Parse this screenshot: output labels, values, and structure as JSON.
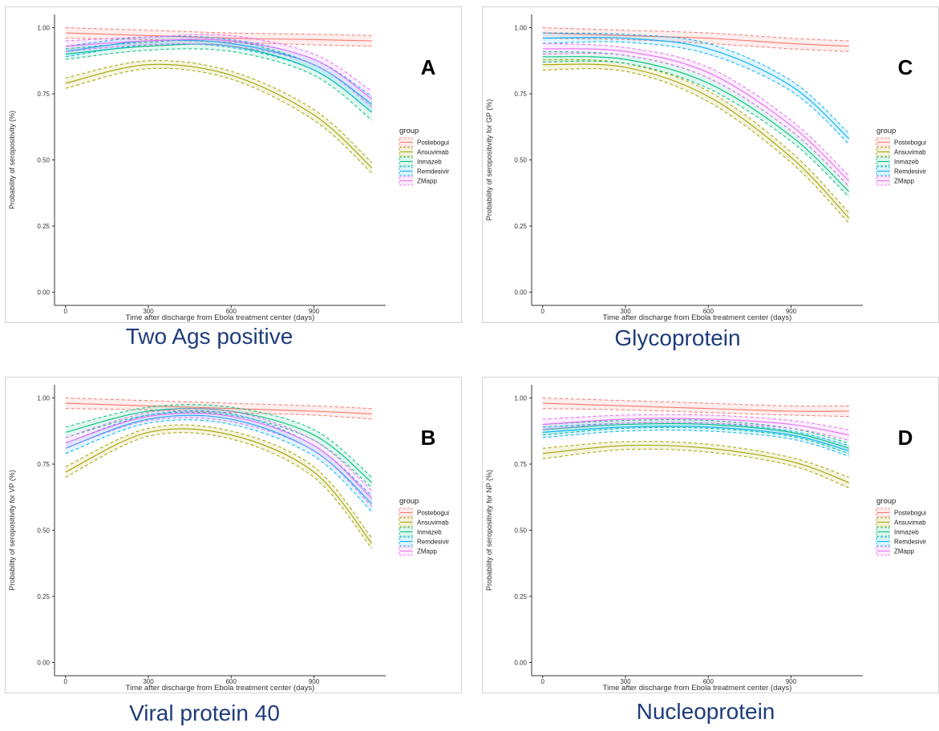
{
  "chart_data": [
    {
      "type": "line",
      "panel_letter": "A",
      "caption": "Two Ags positive",
      "xlabel": "Time after discharge from Ebola treatment center (days)",
      "ylabel": "Probability of seropositivity (%)",
      "xlim": [
        -40,
        1160
      ],
      "ylim": [
        -0.05,
        1.05
      ],
      "xticks": [
        "0",
        "300",
        "600",
        "900"
      ],
      "yticks": [
        "0.00",
        "0.25",
        "0.50",
        "0.75",
        "1.00"
      ],
      "legend_title": "group",
      "series": [
        {
          "name": "Postebogui",
          "color": "#f8766d",
          "x": [
            0,
            300,
            600,
            900,
            1110
          ],
          "y": [
            0.98,
            0.97,
            0.96,
            0.955,
            0.95
          ],
          "lower": [
            0.96,
            0.955,
            0.945,
            0.935,
            0.93
          ],
          "upper": [
            1.0,
            0.99,
            0.98,
            0.975,
            0.97
          ]
        },
        {
          "name": "Ansuvimab",
          "color": "#a3a500",
          "x": [
            0,
            300,
            600,
            900,
            1110
          ],
          "y": [
            0.79,
            0.86,
            0.82,
            0.67,
            0.47
          ],
          "lower": [
            0.77,
            0.845,
            0.805,
            0.65,
            0.45
          ],
          "upper": [
            0.81,
            0.875,
            0.835,
            0.69,
            0.49
          ]
        },
        {
          "name": "Inmazeb",
          "color": "#00bf7d",
          "x": [
            0,
            300,
            600,
            900,
            1110
          ],
          "y": [
            0.9,
            0.93,
            0.93,
            0.84,
            0.68
          ],
          "lower": [
            0.88,
            0.915,
            0.91,
            0.82,
            0.65
          ],
          "upper": [
            0.92,
            0.945,
            0.95,
            0.86,
            0.71
          ]
        },
        {
          "name": "Remdesivir",
          "color": "#00b0f6",
          "x": [
            0,
            300,
            600,
            900,
            1110
          ],
          "y": [
            0.91,
            0.95,
            0.94,
            0.86,
            0.71
          ],
          "lower": [
            0.89,
            0.935,
            0.925,
            0.84,
            0.68
          ],
          "upper": [
            0.93,
            0.965,
            0.955,
            0.88,
            0.74
          ]
        },
        {
          "name": "ZMapp",
          "color": "#e76bf3",
          "x": [
            0,
            300,
            600,
            900,
            1110
          ],
          "y": [
            0.93,
            0.95,
            0.95,
            0.88,
            0.73
          ],
          "lower": [
            0.91,
            0.935,
            0.93,
            0.86,
            0.7
          ],
          "upper": [
            0.95,
            0.965,
            0.97,
            0.9,
            0.76
          ]
        }
      ]
    },
    {
      "type": "line",
      "panel_letter": "C",
      "caption": "Glycoprotein",
      "xlabel": "Time after discharge from Ebola treatment center (days)",
      "ylabel": "Probability of seropositivity for GP (%)",
      "xlim": [
        -40,
        1160
      ],
      "ylim": [
        -0.05,
        1.05
      ],
      "xticks": [
        "0",
        "300",
        "600",
        "900"
      ],
      "yticks": [
        "0.00",
        "0.25",
        "0.50",
        "0.75",
        "1.00"
      ],
      "legend_title": "group",
      "series": [
        {
          "name": "Postebogui",
          "color": "#f8766d",
          "x": [
            0,
            300,
            600,
            900,
            1110
          ],
          "y": [
            0.98,
            0.97,
            0.96,
            0.94,
            0.93
          ],
          "lower": [
            0.96,
            0.955,
            0.94,
            0.92,
            0.91
          ],
          "upper": [
            1.0,
            0.99,
            0.98,
            0.96,
            0.95
          ]
        },
        {
          "name": "Ansuvimab",
          "color": "#a3a500",
          "x": [
            0,
            300,
            600,
            900,
            1110
          ],
          "y": [
            0.86,
            0.85,
            0.74,
            0.51,
            0.28
          ],
          "lower": [
            0.84,
            0.835,
            0.72,
            0.49,
            0.26
          ],
          "upper": [
            0.88,
            0.865,
            0.76,
            0.53,
            0.3
          ]
        },
        {
          "name": "Inmazeb",
          "color": "#00bf7d",
          "x": [
            0,
            300,
            600,
            900,
            1110
          ],
          "y": [
            0.89,
            0.88,
            0.79,
            0.59,
            0.38
          ],
          "lower": [
            0.87,
            0.865,
            0.77,
            0.57,
            0.36
          ],
          "upper": [
            0.91,
            0.895,
            0.81,
            0.61,
            0.4
          ]
        },
        {
          "name": "Remdesivir",
          "color": "#00b0f6",
          "x": [
            0,
            300,
            600,
            900,
            1110
          ],
          "y": [
            0.96,
            0.96,
            0.92,
            0.78,
            0.58
          ],
          "lower": [
            0.94,
            0.945,
            0.9,
            0.76,
            0.56
          ],
          "upper": [
            0.98,
            0.975,
            0.94,
            0.8,
            0.6
          ]
        },
        {
          "name": "ZMapp",
          "color": "#e76bf3",
          "x": [
            0,
            300,
            600,
            900,
            1110
          ],
          "y": [
            0.92,
            0.91,
            0.83,
            0.63,
            0.42
          ],
          "lower": [
            0.9,
            0.895,
            0.81,
            0.61,
            0.4
          ],
          "upper": [
            0.94,
            0.925,
            0.85,
            0.65,
            0.44
          ]
        }
      ]
    },
    {
      "type": "line",
      "panel_letter": "B",
      "caption": "Viral protein 40",
      "xlabel": "Time after discharge from Ebola treatment center (days)",
      "ylabel": "Probability of seropositivity for VP (%)",
      "xlim": [
        -40,
        1160
      ],
      "ylim": [
        -0.05,
        1.05
      ],
      "xticks": [
        "0",
        "300",
        "600",
        "900"
      ],
      "yticks": [
        "0.00",
        "0.25",
        "0.50",
        "0.75",
        "1.00"
      ],
      "legend_title": "group",
      "series": [
        {
          "name": "Postebogui",
          "color": "#f8766d",
          "x": [
            0,
            300,
            600,
            900,
            1110
          ],
          "y": [
            0.98,
            0.97,
            0.96,
            0.95,
            0.94
          ],
          "lower": [
            0.96,
            0.955,
            0.945,
            0.935,
            0.92
          ],
          "upper": [
            1.0,
            0.99,
            0.98,
            0.97,
            0.96
          ]
        },
        {
          "name": "Ansuvimab",
          "color": "#a3a500",
          "x": [
            0,
            300,
            600,
            900,
            1110
          ],
          "y": [
            0.72,
            0.87,
            0.86,
            0.72,
            0.45
          ],
          "lower": [
            0.7,
            0.855,
            0.845,
            0.7,
            0.43
          ],
          "upper": [
            0.74,
            0.885,
            0.875,
            0.74,
            0.47
          ]
        },
        {
          "name": "Inmazeb",
          "color": "#00bf7d",
          "x": [
            0,
            300,
            600,
            900,
            1110
          ],
          "y": [
            0.87,
            0.95,
            0.95,
            0.86,
            0.68
          ],
          "lower": [
            0.85,
            0.935,
            0.935,
            0.84,
            0.66
          ],
          "upper": [
            0.89,
            0.965,
            0.965,
            0.88,
            0.7
          ]
        },
        {
          "name": "Remdesivir",
          "color": "#00b0f6",
          "x": [
            0,
            300,
            600,
            900,
            1110
          ],
          "y": [
            0.81,
            0.92,
            0.92,
            0.8,
            0.6
          ],
          "lower": [
            0.79,
            0.905,
            0.9,
            0.78,
            0.57
          ],
          "upper": [
            0.83,
            0.935,
            0.94,
            0.82,
            0.63
          ]
        },
        {
          "name": "ZMapp",
          "color": "#e76bf3",
          "x": [
            0,
            300,
            600,
            900,
            1110
          ],
          "y": [
            0.83,
            0.93,
            0.93,
            0.82,
            0.62
          ],
          "lower": [
            0.81,
            0.915,
            0.91,
            0.8,
            0.59
          ],
          "upper": [
            0.85,
            0.945,
            0.95,
            0.84,
            0.65
          ]
        }
      ]
    },
    {
      "type": "line",
      "panel_letter": "D",
      "caption": "Nucleoprotein",
      "xlabel": "Time after discharge from Ebola treatment center (days)",
      "ylabel": "Probability of seropositivity for NP (%)",
      "xlim": [
        -40,
        1160
      ],
      "ylim": [
        -0.05,
        1.05
      ],
      "xticks": [
        "0",
        "300",
        "600",
        "900"
      ],
      "yticks": [
        "0.00",
        "0.25",
        "0.50",
        "0.75",
        "1.00"
      ],
      "legend_title": "group",
      "series": [
        {
          "name": "Postebogui",
          "color": "#f8766d",
          "x": [
            0,
            300,
            600,
            900,
            1110
          ],
          "y": [
            0.98,
            0.97,
            0.96,
            0.95,
            0.95
          ],
          "lower": [
            0.96,
            0.955,
            0.945,
            0.935,
            0.93
          ],
          "upper": [
            1.0,
            0.99,
            0.98,
            0.97,
            0.97
          ]
        },
        {
          "name": "Ansuvimab",
          "color": "#a3a500",
          "x": [
            0,
            300,
            600,
            900,
            1110
          ],
          "y": [
            0.79,
            0.82,
            0.81,
            0.76,
            0.68
          ],
          "lower": [
            0.77,
            0.805,
            0.795,
            0.745,
            0.66
          ],
          "upper": [
            0.81,
            0.835,
            0.825,
            0.775,
            0.7
          ]
        },
        {
          "name": "Inmazeb",
          "color": "#00bf7d",
          "x": [
            0,
            300,
            600,
            900,
            1110
          ],
          "y": [
            0.88,
            0.9,
            0.9,
            0.87,
            0.81
          ],
          "lower": [
            0.86,
            0.885,
            0.885,
            0.855,
            0.79
          ],
          "upper": [
            0.9,
            0.915,
            0.915,
            0.885,
            0.83
          ]
        },
        {
          "name": "Remdesivir",
          "color": "#00b0f6",
          "x": [
            0,
            300,
            600,
            900,
            1110
          ],
          "y": [
            0.87,
            0.89,
            0.89,
            0.86,
            0.8
          ],
          "lower": [
            0.85,
            0.875,
            0.875,
            0.845,
            0.78
          ],
          "upper": [
            0.89,
            0.905,
            0.905,
            0.875,
            0.82
          ]
        },
        {
          "name": "ZMapp",
          "color": "#e76bf3",
          "x": [
            0,
            300,
            600,
            900,
            1110
          ],
          "y": [
            0.9,
            0.92,
            0.92,
            0.9,
            0.86
          ],
          "lower": [
            0.88,
            0.905,
            0.905,
            0.885,
            0.84
          ],
          "upper": [
            0.92,
            0.935,
            0.935,
            0.915,
            0.88
          ]
        }
      ]
    }
  ]
}
